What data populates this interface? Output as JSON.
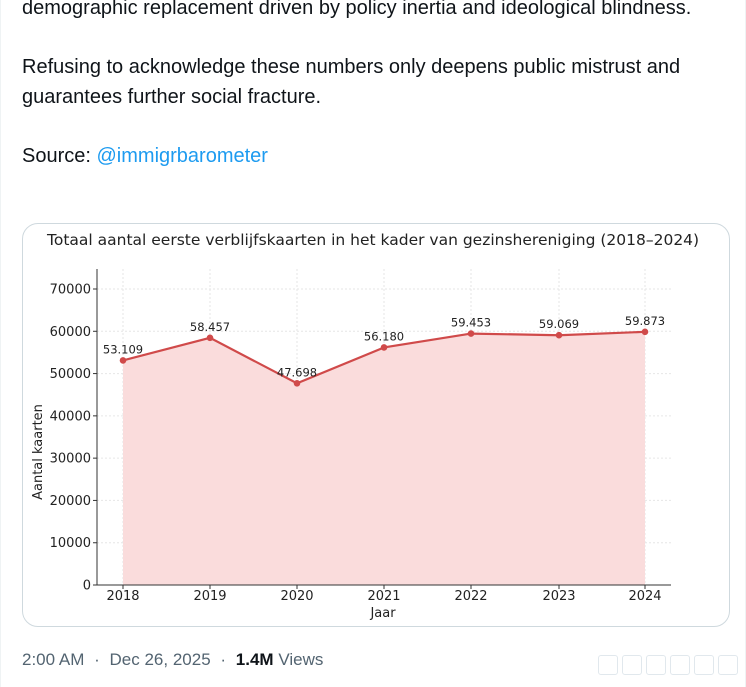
{
  "tweet": {
    "text_lines": [
      "demographic replacement driven by policy inertia and ideological blindness.",
      "Refusing to acknowledge these numbers only deepens public mistrust and guarantees further social fracture."
    ],
    "source_label": "Source:",
    "source_handle": "@immigrbarometer",
    "time": "2:00 AM",
    "date": "Dec 26, 2025",
    "views_count": "1.4M",
    "views_label": "Views",
    "separator": "·"
  },
  "chart_data": {
    "type": "area",
    "title": "Totaal aantal eerste verblijfskaarten in het kader van gezinshereniging (2018–2024)",
    "xlabel": "Jaar",
    "ylabel": "Aantal kaarten",
    "categories": [
      "2018",
      "2019",
      "2020",
      "2021",
      "2022",
      "2023",
      "2024"
    ],
    "values": [
      53109,
      58457,
      47698,
      56180,
      59453,
      59069,
      59873
    ],
    "data_labels": [
      "53.109",
      "58.457",
      "47.698",
      "56.180",
      "59.453",
      "59.069",
      "59.873"
    ],
    "ylim": [
      0,
      70000
    ],
    "yticks": [
      0,
      10000,
      20000,
      30000,
      40000,
      50000,
      60000,
      70000
    ],
    "grid": true,
    "line_color": "#d04a4a",
    "fill_color": "#fadcdc"
  }
}
